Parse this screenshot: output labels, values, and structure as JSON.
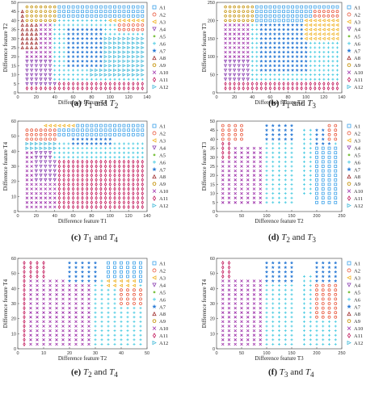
{
  "symbol_colors": {
    "A1": "#3aa0e8",
    "A2": "#e8553a",
    "A3": "#f0b429",
    "A4": "#8a3fb0",
    "A5": "#7cc242",
    "A6": "#3ec8e0",
    "A7": "#2b7bd6",
    "A8": "#9e2a2a",
    "A9": "#c28f00",
    "A10": "#9b2ba8",
    "A11": "#c2185b",
    "A12": "#40b8d8"
  },
  "symbol_shapes": {
    "A1": "square",
    "A2": "circle",
    "A3": "triangle-left",
    "A4": "triangle-down",
    "A5": "dot",
    "A6": "plus",
    "A7": "star",
    "A8": "triangle-up",
    "A9": "hexagon",
    "A10": "x",
    "A11": "diamond",
    "A12": "triangle-right"
  },
  "panels": [
    {
      "id": "a",
      "caption": {
        "letter": "(a)",
        "v1": "T",
        "s1": "1",
        "conj": " and ",
        "v2": "T",
        "s2": "2"
      },
      "chart_data": {
        "type": "scatter",
        "xlabel": "Difference feature T1",
        "ylabel": "Difference feature T2",
        "xlim": [
          0,
          140
        ],
        "ylim": [
          0,
          50
        ],
        "xticks": [
          0,
          20,
          40,
          60,
          80,
          100,
          120,
          140
        ],
        "yticks": [
          0,
          5,
          10,
          15,
          20,
          25,
          30,
          35,
          40,
          45,
          50
        ],
        "legend": [
          "A1",
          "A2",
          "A3",
          "A4",
          "A5",
          "A6",
          "A7",
          "A8",
          "A9",
          "A10",
          "A11",
          "A12"
        ],
        "legend_position": "right",
        "grid": {
          "xstep": 5,
          "ystep": 2.5
        },
        "regions": [
          {
            "class": "A11",
            "x": [
              10,
              140
            ],
            "y": [
              0,
              7
            ]
          },
          {
            "class": "A4",
            "x": [
              10,
              40
            ],
            "y": [
              5,
              20
            ]
          },
          {
            "class": "A10",
            "x": [
              10,
              40
            ],
            "y": [
              20,
              40
            ]
          },
          {
            "class": "A8",
            "x": [
              5,
              20
            ],
            "y": [
              25,
              45
            ]
          },
          {
            "class": "A6",
            "x": [
              40,
              140
            ],
            "y": [
              7,
              40
            ]
          },
          {
            "class": "A12",
            "x": [
              80,
              140
            ],
            "y": [
              10,
              30
            ]
          },
          {
            "class": "A7",
            "x": [
              55,
              90
            ],
            "y": [
              15,
              35
            ]
          },
          {
            "class": "A2",
            "x": [
              110,
              140
            ],
            "y": [
              35,
              50
            ]
          },
          {
            "class": "A3",
            "x": [
              100,
              140
            ],
            "y": [
              40,
              50
            ]
          },
          {
            "class": "A1",
            "x": [
              40,
              140
            ],
            "y": [
              42,
              50
            ]
          },
          {
            "class": "A9",
            "x": [
              10,
              40
            ],
            "y": [
              40,
              50
            ]
          }
        ]
      }
    },
    {
      "id": "b",
      "caption": {
        "letter": "(b)",
        "v1": "T",
        "s1": "1",
        "conj": " and ",
        "v2": "T",
        "s2": "3"
      },
      "chart_data": {
        "type": "scatter",
        "xlabel": "Difference feature T1",
        "ylabel": "Difference feature T3",
        "xlim": [
          0,
          140
        ],
        "ylim": [
          0,
          250
        ],
        "xticks": [
          0,
          20,
          40,
          60,
          80,
          100,
          120,
          140
        ],
        "yticks": [
          0,
          50,
          100,
          150,
          200,
          250
        ],
        "legend": [
          "A1",
          "A2",
          "A3",
          "A4",
          "A5",
          "A6",
          "A7",
          "A8",
          "A9",
          "A10",
          "A11",
          "A12"
        ],
        "legend_position": "right",
        "grid": {
          "xstep": 5,
          "ystep": 12.5
        },
        "regions": [
          {
            "class": "A11",
            "x": [
              10,
              140
            ],
            "y": [
              0,
              30
            ]
          },
          {
            "class": "A4",
            "x": [
              10,
              40
            ],
            "y": [
              30,
              100
            ]
          },
          {
            "class": "A10",
            "x": [
              10,
              40
            ],
            "y": [
              100,
              200
            ]
          },
          {
            "class": "A6",
            "x": [
              40,
              140
            ],
            "y": [
              30,
              200
            ]
          },
          {
            "class": "A7",
            "x": [
              50,
              100
            ],
            "y": [
              60,
              200
            ]
          },
          {
            "class": "A1",
            "x": [
              40,
              140
            ],
            "y": [
              200,
              250
            ]
          },
          {
            "class": "A2",
            "x": [
              110,
              140
            ],
            "y": [
              170,
              230
            ]
          },
          {
            "class": "A3",
            "x": [
              100,
              140
            ],
            "y": [
              150,
              200
            ]
          },
          {
            "class": "A9",
            "x": [
              10,
              40
            ],
            "y": [
              200,
              250
            ]
          }
        ]
      }
    },
    {
      "id": "c",
      "caption": {
        "letter": "(c)",
        "v1": "T",
        "s1": "1",
        "conj": " and ",
        "v2": "T",
        "s2": "4"
      },
      "chart_data": {
        "type": "scatter",
        "xlabel": "Difference feature T1",
        "ylabel": "Difference feature T4",
        "xlim": [
          0,
          140
        ],
        "ylim": [
          0,
          60
        ],
        "xticks": [
          0,
          20,
          40,
          60,
          80,
          100,
          120,
          140
        ],
        "yticks": [
          0,
          10,
          20,
          30,
          40,
          50,
          60
        ],
        "legend": [
          "A1",
          "A2",
          "A3",
          "A4",
          "A5",
          "A6",
          "A7",
          "A8",
          "A9",
          "A10",
          "A11",
          "A12"
        ],
        "legend_position": "right",
        "grid": {
          "xstep": 5,
          "ystep": 3
        },
        "regions": [
          {
            "class": "A11",
            "x": [
              10,
              140
            ],
            "y": [
              3,
              36
            ]
          },
          {
            "class": "A10",
            "x": [
              10,
              40
            ],
            "y": [
              3,
              40
            ]
          },
          {
            "class": "A4",
            "x": [
              20,
              40
            ],
            "y": [
              20,
              40
            ]
          },
          {
            "class": "A6",
            "x": [
              40,
              140
            ],
            "y": [
              36,
              45
            ]
          },
          {
            "class": "A7",
            "x": [
              60,
              100
            ],
            "y": [
              45,
              55
            ]
          },
          {
            "class": "A1",
            "x": [
              40,
              140
            ],
            "y": [
              50,
              60
            ]
          },
          {
            "class": "A2",
            "x": [
              10,
              40
            ],
            "y": [
              45,
              55
            ]
          },
          {
            "class": "A3",
            "x": [
              30,
              60
            ],
            "y": [
              55,
              60
            ]
          },
          {
            "class": "A12",
            "x": [
              10,
              40
            ],
            "y": [
              40,
              45
            ]
          }
        ]
      }
    },
    {
      "id": "d",
      "caption": {
        "letter": "(d)",
        "v1": "T",
        "s1": "2",
        "conj": " and ",
        "v2": "T",
        "s2": "3"
      },
      "chart_data": {
        "type": "scatter",
        "xlabel": "Difference feature T2",
        "ylabel": "Difference feature T3",
        "xlim": [
          0,
          250
        ],
        "ylim": [
          0,
          50
        ],
        "xticks": [
          0,
          50,
          100,
          150,
          200,
          250
        ],
        "yticks": [
          0,
          5,
          10,
          15,
          20,
          25,
          30,
          35,
          40,
          45,
          50
        ],
        "legend": [
          "A1",
          "A2",
          "A3",
          "A4",
          "A5",
          "A6",
          "A7",
          "A8",
          "A9",
          "A10",
          "A11",
          "A12"
        ],
        "legend_position": "right",
        "grid": {
          "xstep": 12.5,
          "ystep": 2.5
        },
        "regions": [
          {
            "class": "A10",
            "x": [
              0,
              100
            ],
            "y": [
              5,
              35
            ]
          },
          {
            "class": "A11",
            "x": [
              0,
              25
            ],
            "y": [
              30,
              40
            ]
          },
          {
            "class": "A6",
            "x": [
              100,
              150
            ],
            "y": [
              5,
              45
            ]
          },
          {
            "class": "A7",
            "x": [
              100,
              150
            ],
            "y": [
              40,
              50
            ]
          },
          {
            "class": "A2",
            "x": [
              0,
              50
            ],
            "y": [
              40,
              50
            ]
          },
          {
            "class": "A6",
            "x": [
              175,
              250
            ],
            "y": [
              10,
              45
            ]
          },
          {
            "class": "A7",
            "x": [
              200,
              225
            ],
            "y": [
              25,
              45
            ]
          },
          {
            "class": "A1",
            "x": [
              200,
              250
            ],
            "y": [
              5,
              35
            ]
          },
          {
            "class": "A2",
            "x": [
              225,
              250
            ],
            "y": [
              40,
              50
            ]
          }
        ]
      }
    },
    {
      "id": "e",
      "caption": {
        "letter": "(e)",
        "v1": "T",
        "s1": "2",
        "conj": " and ",
        "v2": "T",
        "s2": "4"
      },
      "chart_data": {
        "type": "scatter",
        "xlabel": "Difference feature T2",
        "ylabel": "Difference feature T4",
        "xlim": [
          0,
          50
        ],
        "ylim": [
          0,
          60
        ],
        "xticks": [
          0,
          10,
          20,
          30,
          40,
          50
        ],
        "yticks": [
          0,
          10,
          20,
          30,
          40,
          50,
          60
        ],
        "legend": [
          "A1",
          "A2",
          "A3",
          "A4",
          "A5",
          "A6",
          "A7",
          "A8",
          "A9",
          "A10",
          "A11",
          "A12"
        ],
        "legend_position": "right",
        "grid": {
          "xstep": 2.5,
          "ystep": 3
        },
        "regions": [
          {
            "class": "A11",
            "x": [
              0,
              10
            ],
            "y": [
              3,
              60
            ]
          },
          {
            "class": "A10",
            "x": [
              5,
              30
            ],
            "y": [
              3,
              45
            ]
          },
          {
            "class": "A6",
            "x": [
              30,
              50
            ],
            "y": [
              3,
              45
            ]
          },
          {
            "class": "A7",
            "x": [
              20,
              30
            ],
            "y": [
              45,
              60
            ]
          },
          {
            "class": "A1",
            "x": [
              35,
              50
            ],
            "y": [
              45,
              60
            ]
          },
          {
            "class": "A2",
            "x": [
              40,
              50
            ],
            "y": [
              30,
              40
            ]
          },
          {
            "class": "A3",
            "x": [
              35,
              45
            ],
            "y": [
              40,
              45
            ]
          }
        ]
      }
    },
    {
      "id": "f",
      "caption": {
        "letter": "(f)",
        "v1": "T",
        "s1": "3",
        "conj": " and ",
        "v2": "T",
        "s2": "4"
      },
      "chart_data": {
        "type": "scatter",
        "xlabel": "Difference feature T3",
        "ylabel": "Difference feature T4",
        "xlim": [
          0,
          250
        ],
        "ylim": [
          0,
          60
        ],
        "xticks": [
          0,
          50,
          100,
          150,
          200,
          250
        ],
        "yticks": [
          0,
          10,
          20,
          30,
          40,
          50,
          60
        ],
        "legend": [
          "A1",
          "A2",
          "A3",
          "A4",
          "A5",
          "A6",
          "A7",
          "A8",
          "A9",
          "A10",
          "A11",
          "A12"
        ],
        "legend_position": "right",
        "grid": {
          "xstep": 12.5,
          "ystep": 3
        },
        "regions": [
          {
            "class": "A11",
            "x": [
              0,
              25
            ],
            "y": [
              3,
              60
            ]
          },
          {
            "class": "A10",
            "x": [
              0,
              125
            ],
            "y": [
              3,
              45
            ]
          },
          {
            "class": "A6",
            "x": [
              100,
              150
            ],
            "y": [
              3,
              50
            ]
          },
          {
            "class": "A7",
            "x": [
              100,
              150
            ],
            "y": [
              45,
              60
            ]
          },
          {
            "class": "A6",
            "x": [
              175,
              250
            ],
            "y": [
              3,
              50
            ]
          },
          {
            "class": "A2",
            "x": [
              200,
              250
            ],
            "y": [
              20,
              45
            ]
          },
          {
            "class": "A7",
            "x": [
              200,
              250
            ],
            "y": [
              45,
              60
            ]
          }
        ]
      }
    }
  ]
}
